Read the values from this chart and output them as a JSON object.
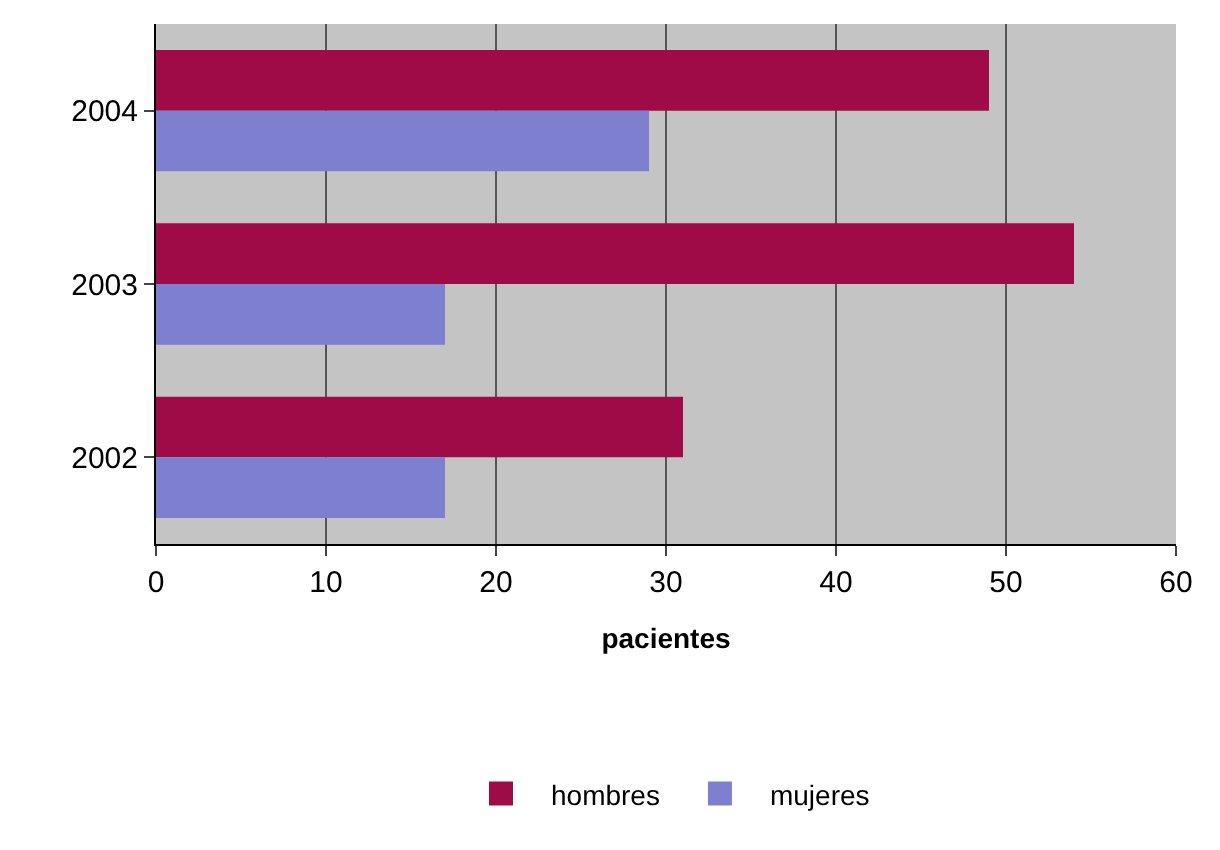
{
  "chart_data": {
    "type": "bar",
    "orientation": "horizontal",
    "xlabel": "pacientes",
    "categories": [
      "2004",
      "2003",
      "2002"
    ],
    "series": [
      {
        "name": "hombres",
        "color": "#9e0b46",
        "values": [
          49,
          54,
          31
        ]
      },
      {
        "name": "mujeres",
        "color": "#7f7fcf",
        "values": [
          29,
          17,
          17
        ]
      }
    ],
    "xlim": [
      0,
      60
    ],
    "xticks": [
      0,
      10,
      20,
      30,
      40,
      50,
      60
    ],
    "grid": "x",
    "legend": "bottom"
  }
}
